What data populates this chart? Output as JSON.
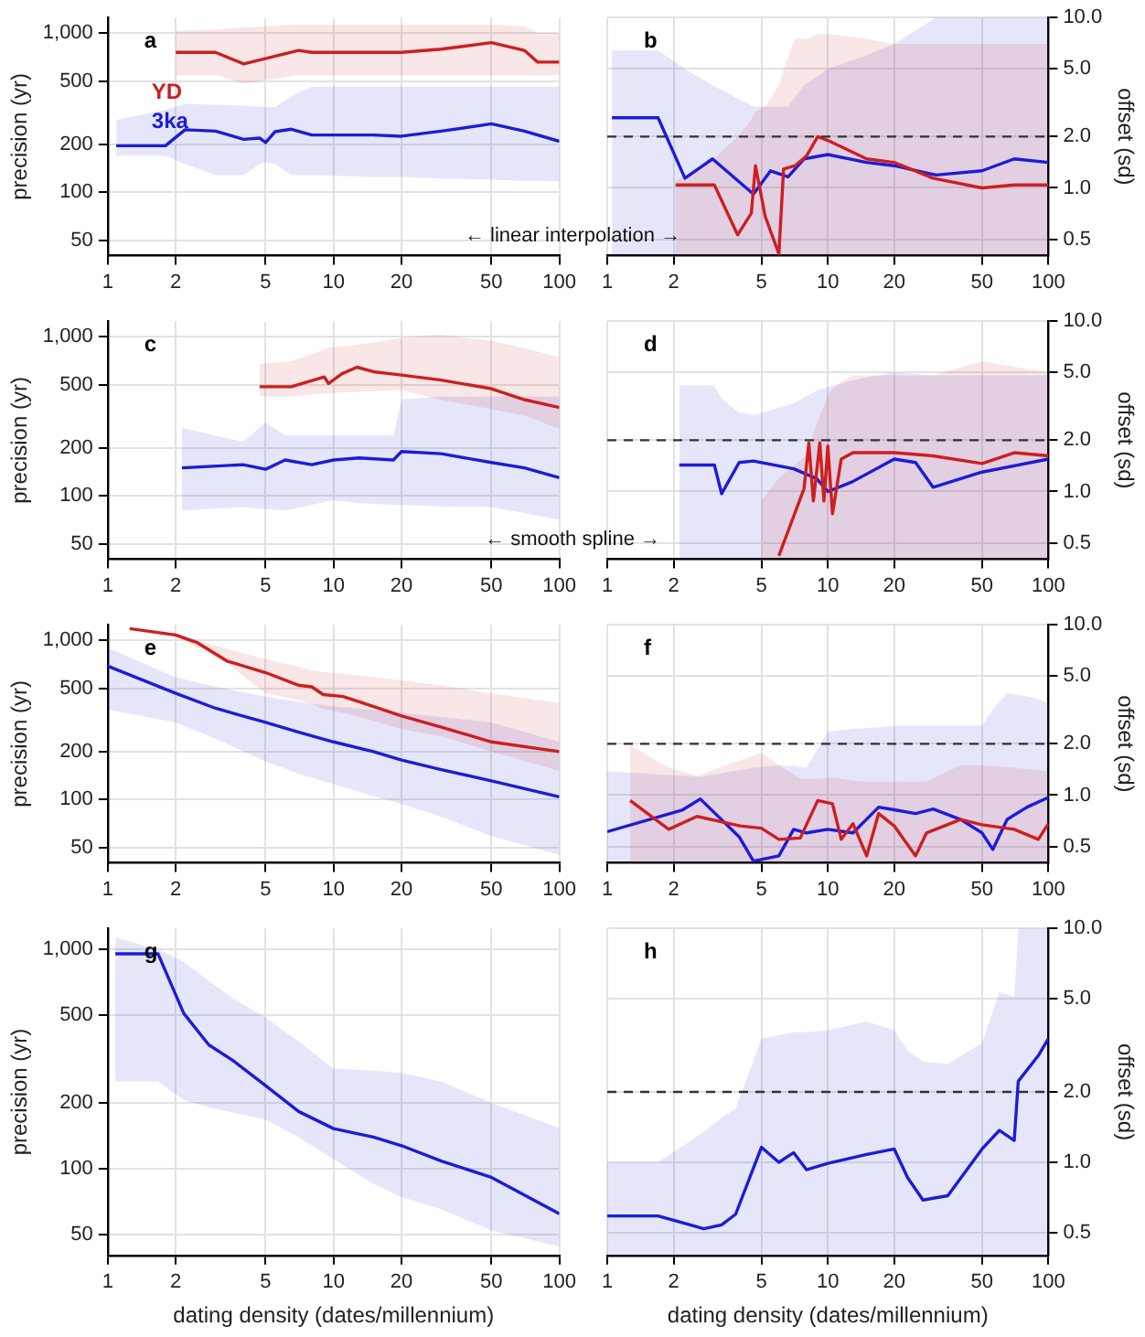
{
  "chart_data": [
    {
      "type": "line",
      "title": "a",
      "ylabel": "precision (yr)",
      "log": "xy",
      "grid": true,
      "xlim": [
        1,
        100
      ],
      "xticks": [
        1,
        2,
        5,
        10,
        20,
        50,
        100
      ],
      "ylim": [
        40,
        1250
      ],
      "yticks": [
        50,
        100,
        200,
        500,
        {
          "value": 1000,
          "label": "1,000"
        }
      ],
      "annotations": [
        "← linear interpolation →"
      ],
      "series": [
        {
          "name": "YD",
          "color": "#cc1f1f",
          "x": [
            2,
            3,
            4,
            7,
            8,
            20,
            30,
            50,
            70,
            80,
            100
          ],
          "values": [
            756,
            756,
            640,
            778,
            756,
            756,
            792,
            870,
            778,
            657,
            657
          ],
          "upper": [
            1030,
            1050,
            1080,
            1130,
            1130,
            1130,
            1130,
            1130,
            1100,
            1000,
            1000
          ],
          "lower": [
            545,
            545,
            480,
            545,
            545,
            545,
            545,
            545,
            545,
            545,
            545
          ]
        },
        {
          "name": "3ka",
          "color": "#1c1cd8",
          "x": [
            1.09,
            1.8,
            2.2,
            3,
            4,
            4.7,
            5,
            5.5,
            6.5,
            8,
            15,
            20,
            30,
            50,
            70,
            100
          ],
          "values": [
            196,
            196,
            247,
            242,
            215,
            219,
            205,
            240,
            249,
            229,
            229,
            225,
            242,
            269,
            242,
            209
          ],
          "upper": [
            284,
            330,
            359,
            355,
            350,
            345,
            343,
            343,
            400,
            461,
            461,
            461,
            461,
            461,
            461,
            461
          ],
          "lower": [
            170,
            170,
            150,
            128,
            128,
            150,
            155,
            150,
            128,
            128,
            125,
            125,
            122,
            120,
            118,
            117
          ]
        }
      ]
    },
    {
      "type": "line",
      "title": "b",
      "ylabel": "offset (sd)",
      "log": "xy",
      "grid": true,
      "xlim": [
        1,
        100
      ],
      "xticks": [
        1,
        2,
        5,
        10,
        20,
        50,
        100
      ],
      "ylim": [
        0.4,
        10
      ],
      "yticks": [
        {
          "value": 0.5,
          "label": "0.5"
        },
        {
          "value": 1,
          "label": "1.0"
        },
        {
          "value": 2,
          "label": "2.0"
        },
        {
          "value": 5,
          "label": "5.0"
        },
        {
          "value": 10,
          "label": "10.0"
        }
      ],
      "ref_lines": [
        {
          "axis": "y",
          "value": 2,
          "line_style": "dashed",
          "color": "#333333"
        }
      ],
      "series": [
        {
          "color": "#cc1f1f",
          "x": [
            2.04,
            3.06,
            3.9,
            4.5,
            4.7,
            5.2,
            6,
            6.3,
            7.1,
            8,
            9,
            10,
            15,
            20,
            30,
            50,
            70,
            100
          ],
          "values": [
            1.04,
            1.04,
            0.53,
            0.71,
            1.35,
            0.68,
            0.41,
            1.29,
            1.35,
            1.54,
            2.0,
            1.9,
            1.48,
            1.41,
            1.14,
            1.0,
            1.04,
            1.04
          ],
          "upper": [
            1.1,
            1.5,
            2,
            2.5,
            2.8,
            3,
            4,
            5,
            7.5,
            7.5,
            8,
            8,
            7.5,
            7,
            7,
            7,
            7,
            7
          ],
          "lower": [
            0.4,
            0.4,
            0.4,
            0.4,
            0.4,
            0.4,
            0.4,
            0.4,
            0.4,
            0.4,
            0.4,
            0.4,
            0.4,
            0.4,
            0.4,
            0.4,
            0.4,
            0.4
          ]
        },
        {
          "color": "#1c1cd8",
          "x": [
            1.05,
            1.7,
            2.25,
            3,
            4.6,
            5.5,
            6.6,
            7.8,
            10,
            15,
            20,
            31,
            50,
            70,
            100
          ],
          "values": [
            2.58,
            2.58,
            1.14,
            1.48,
            0.92,
            1.26,
            1.16,
            1.48,
            1.57,
            1.41,
            1.35,
            1.19,
            1.26,
            1.48,
            1.41
          ],
          "upper": [
            6.4,
            6.4,
            5,
            4,
            3,
            3,
            3,
            4,
            5,
            6,
            7,
            10,
            10,
            10,
            10
          ],
          "lower": [
            0.4,
            0.4,
            0.4,
            0.4,
            0.4,
            0.4,
            0.4,
            0.4,
            0.4,
            0.4,
            0.4,
            0.4,
            0.4,
            0.4,
            0.4
          ]
        }
      ]
    },
    {
      "type": "line",
      "title": "c",
      "ylabel": "precision (yr)",
      "log": "xy",
      "grid": true,
      "xlim": [
        1,
        100
      ],
      "xticks": [
        1,
        2,
        5,
        10,
        20,
        50,
        100
      ],
      "ylim": [
        40,
        1250
      ],
      "yticks": [
        50,
        100,
        200,
        500,
        {
          "value": 1000,
          "label": "1,000"
        }
      ],
      "annotations": [
        "← smooth spline →"
      ],
      "series": [
        {
          "color": "#cc1f1f",
          "x": [
            4.7,
            6.5,
            9.1,
            9.5,
            10.9,
            12.7,
            15,
            20,
            30,
            50,
            70,
            100
          ],
          "values": [
            485,
            485,
            558,
            508,
            585,
            643,
            602,
            574,
            533,
            471,
            402,
            359
          ],
          "upper": [
            674,
            700,
            830,
            852,
            870,
            890,
            920,
            980,
            1030,
            937,
            850,
            740
          ],
          "lower": [
            421,
            421,
            440,
            440,
            445,
            450,
            455,
            463,
            400,
            350,
            320,
            263
          ]
        },
        {
          "color": "#1c1cd8",
          "x": [
            2.13,
            3.97,
            5,
            6.1,
            8,
            10,
            13,
            18.4,
            20,
            30,
            50,
            70,
            100
          ],
          "values": [
            150,
            157,
            147,
            168,
            157,
            168,
            173,
            168,
            190,
            184,
            162,
            150,
            130
          ],
          "upper": [
            268,
            218,
            289,
            240,
            240,
            240,
            240,
            240,
            402,
            421,
            421,
            421,
            421
          ],
          "lower": [
            81,
            85,
            83,
            81,
            88,
            94,
            90,
            88,
            88,
            86,
            85,
            78,
            71
          ]
        }
      ]
    },
    {
      "type": "line",
      "title": "d",
      "ylabel": "offset (sd)",
      "log": "xy",
      "grid": true,
      "xlim": [
        1,
        100
      ],
      "xticks": [
        1,
        2,
        5,
        10,
        20,
        50,
        100
      ],
      "ylim": [
        0.4,
        10
      ],
      "yticks": [
        {
          "value": 0.5,
          "label": "0.5"
        },
        {
          "value": 1,
          "label": "1.0"
        },
        {
          "value": 2,
          "label": "2.0"
        },
        {
          "value": 5,
          "label": "5.0"
        },
        {
          "value": 10,
          "label": "10.0"
        }
      ],
      "ref_lines": [
        {
          "axis": "y",
          "value": 2,
          "line_style": "dashed",
          "color": "#333333"
        }
      ],
      "series": [
        {
          "color": "#cc1f1f",
          "x": [
            5,
            6,
            7.8,
            8.2,
            8.6,
            9.2,
            9.6,
            10,
            10.5,
            11.5,
            13,
            20,
            30,
            50,
            70,
            100
          ],
          "values": [
            null,
            0.42,
            1.04,
            1.93,
            0.88,
            1.93,
            0.88,
            1.85,
            0.74,
            1.55,
            1.69,
            1.69,
            1.62,
            1.46,
            1.69,
            1.62
          ],
          "upper": [
            0.88,
            1.2,
            1.6,
            1.8,
            2.2,
            2.8,
            3.2,
            3.7,
            4,
            4.4,
            4.8,
            4.8,
            4.8,
            5.8,
            5.4,
            5.0
          ],
          "lower": [
            0.4,
            0.4,
            0.4,
            0.4,
            0.4,
            0.4,
            0.4,
            0.4,
            0.4,
            0.4,
            0.4,
            0.4,
            0.4,
            0.4,
            0.4,
            0.4
          ]
        },
        {
          "color": "#1c1cd8",
          "x": [
            2.12,
            3.06,
            3.3,
            3.96,
            4.6,
            7,
            8.9,
            10,
            12.9,
            20,
            25,
            30,
            50,
            100
          ],
          "values": [
            1.43,
            1.43,
            0.97,
            1.48,
            1.51,
            1.36,
            1.19,
            1.0,
            1.14,
            1.55,
            1.48,
            1.06,
            1.3,
            1.55
          ],
          "upper": [
            4.2,
            4.2,
            3.5,
            2.9,
            2.8,
            3.3,
            3.9,
            4.1,
            4.5,
            5,
            4.9,
            4.8,
            4.8,
            4.8
          ],
          "lower": [
            0.4,
            0.4,
            0.4,
            0.4,
            0.4,
            0.4,
            0.4,
            0.4,
            0.4,
            0.4,
            0.4,
            0.4,
            0.4,
            0.4
          ]
        }
      ]
    },
    {
      "type": "line",
      "title": "e",
      "ylabel": "precision (yr)",
      "log": "xy",
      "grid": true,
      "xlim": [
        1,
        100
      ],
      "xticks": [
        1,
        2,
        5,
        10,
        20,
        50,
        100
      ],
      "ylim": [
        40,
        1250
      ],
      "yticks": [
        50,
        100,
        200,
        500,
        {
          "value": 1000,
          "label": "1,000"
        }
      ],
      "series": [
        {
          "color": "#cc1f1f",
          "x": [
            1.25,
            2,
            2.5,
            3.37,
            5,
            7.05,
            8,
            9,
            11,
            13,
            20,
            30,
            50,
            100
          ],
          "values": [
            1183,
            1078,
            963,
            741,
            626,
            520,
            510,
            456,
            443,
            411,
            335,
            285,
            230,
            200
          ],
          "upper": [
            1190,
            1100,
            1000,
            880,
            760,
            680,
            650,
            630,
            615,
            600,
            560,
            520,
            464,
            403
          ],
          "lower": [
            1175,
            1050,
            900,
            720,
            464,
            420,
            400,
            370,
            350,
            330,
            277,
            250,
            200,
            151
          ]
        },
        {
          "color": "#1c1cd8",
          "x": [
            1,
            2,
            3,
            5,
            7,
            10,
            15,
            20,
            30,
            50,
            100
          ],
          "values": [
            688,
            464,
            374,
            305,
            265,
            230,
            200,
            177,
            154,
            131,
            104
          ],
          "upper": [
            894,
            586,
            510,
            443,
            410,
            385,
            365,
            350,
            330,
            305,
            230
          ],
          "lower": [
            367,
            305,
            240,
            174,
            145,
            125,
            105,
            94,
            78,
            59,
            45
          ]
        }
      ]
    },
    {
      "type": "line",
      "title": "f",
      "ylabel": "offset (sd)",
      "log": "xy",
      "grid": true,
      "xlim": [
        1,
        100
      ],
      "xticks": [
        1,
        2,
        5,
        10,
        20,
        50,
        100
      ],
      "ylim": [
        0.4,
        10
      ],
      "yticks": [
        {
          "value": 0.5,
          "label": "0.5"
        },
        {
          "value": 1,
          "label": "1.0"
        },
        {
          "value": 2,
          "label": "2.0"
        },
        {
          "value": 5,
          "label": "5.0"
        },
        {
          "value": 10,
          "label": "10.0"
        }
      ],
      "ref_lines": [
        {
          "axis": "y",
          "value": 2,
          "line_style": "dashed",
          "color": "#333333"
        }
      ],
      "series": [
        {
          "color": "#cc1f1f",
          "x": [
            1.27,
            1.9,
            2.55,
            4,
            5,
            6,
            7.5,
            9,
            10.5,
            11.5,
            13,
            15,
            17,
            20,
            25,
            28,
            40,
            50,
            70,
            90,
            100
          ],
          "values": [
            0.93,
            0.63,
            0.75,
            0.66,
            0.64,
            0.55,
            0.56,
            0.93,
            0.89,
            0.55,
            0.68,
            0.44,
            0.78,
            0.66,
            0.44,
            0.6,
            0.72,
            0.67,
            0.63,
            0.55,
            0.68
          ],
          "upper": [
            1.96,
            1.45,
            1.3,
            1.6,
            1.77,
            1.5,
            1.25,
            1.25,
            1.27,
            1.25,
            1.22,
            1.2,
            1.2,
            1.2,
            1.2,
            1.2,
            1.5,
            1.5,
            1.45,
            1.4,
            1.38
          ],
          "lower": [
            0.4,
            0.4,
            0.4,
            0.4,
            0.4,
            0.4,
            0.4,
            0.4,
            0.4,
            0.4,
            0.4,
            0.4,
            0.4,
            0.4,
            0.4,
            0.4,
            0.4,
            0.4,
            0.4,
            0.4,
            0.4
          ]
        },
        {
          "color": "#1c1cd8",
          "x": [
            1,
            2.2,
            2.64,
            3.96,
            4.6,
            6,
            7,
            8,
            10,
            13,
            17,
            20,
            25,
            30,
            40,
            50,
            56,
            65,
            80,
            100
          ],
          "values": [
            0.61,
            0.82,
            0.95,
            0.57,
            0.41,
            0.44,
            0.63,
            0.6,
            0.63,
            0.6,
            0.85,
            0.82,
            0.78,
            0.83,
            0.72,
            0.6,
            0.48,
            0.72,
            0.85,
            0.97
          ],
          "upper": [
            1.38,
            1.3,
            1.28,
            1.4,
            1.45,
            1.5,
            1.48,
            1.45,
            2.35,
            2.45,
            2.5,
            2.56,
            2.56,
            2.56,
            2.56,
            2.56,
            3.2,
            3.97,
            3.8,
            3.5
          ],
          "lower": [
            0.4,
            0.4,
            0.4,
            0.4,
            0.4,
            0.4,
            0.4,
            0.4,
            0.4,
            0.4,
            0.4,
            0.4,
            0.4,
            0.4,
            0.4,
            0.4,
            0.4,
            0.4,
            0.4,
            0.4
          ]
        }
      ]
    },
    {
      "type": "line",
      "title": "g",
      "ylabel": "precision (yr)",
      "xlabel": "dating density (dates/millennium)",
      "log": "xy",
      "grid": true,
      "xlim": [
        1,
        100
      ],
      "xticks": [
        1,
        2,
        5,
        10,
        20,
        50,
        100
      ],
      "ylim": [
        40,
        1250
      ],
      "yticks": [
        50,
        100,
        200,
        500,
        {
          "value": 1000,
          "label": "1,000"
        }
      ],
      "series": [
        {
          "color": "#1c1cd8",
          "x": [
            1.08,
            1.67,
            2.17,
            2.8,
            3.57,
            5,
            7,
            10,
            15,
            20,
            30,
            50,
            100
          ],
          "values": [
            956,
            956,
            511,
            367,
            312,
            239,
            182,
            152,
            139,
            127,
            108,
            91,
            62
          ],
          "upper": [
            1140,
            1000,
            880,
            720,
            600,
            489,
            380,
            286,
            280,
            273,
            249,
            199,
            153
          ],
          "lower": [
            250,
            250,
            205,
            190,
            180,
            167,
            139,
            110,
            85,
            74,
            65,
            52,
            44
          ]
        }
      ]
    },
    {
      "type": "line",
      "title": "h",
      "ylabel": "offset (sd)",
      "xlabel": "dating density (dates/millennium)",
      "log": "xy",
      "grid": true,
      "xlim": [
        1,
        100
      ],
      "xticks": [
        1,
        2,
        5,
        10,
        20,
        50,
        100
      ],
      "ylim": [
        0.4,
        10
      ],
      "yticks": [
        {
          "value": 0.5,
          "label": "0.5"
        },
        {
          "value": 1,
          "label": "1.0"
        },
        {
          "value": 2,
          "label": "2.0"
        },
        {
          "value": 5,
          "label": "5.0"
        },
        {
          "value": 10,
          "label": "10.0"
        }
      ],
      "ref_lines": [
        {
          "axis": "y",
          "value": 2,
          "line_style": "dashed",
          "color": "#333333"
        }
      ],
      "series": [
        {
          "color": "#1c1cd8",
          "x": [
            1,
            1.7,
            2.74,
            3.3,
            3.82,
            5,
            6,
            7,
            8,
            10,
            15,
            20,
            23,
            27,
            35,
            50,
            60,
            70,
            73,
            90,
            100
          ],
          "values": [
            0.59,
            0.59,
            0.52,
            0.54,
            0.6,
            1.16,
            1.0,
            1.1,
            0.93,
            0.99,
            1.08,
            1.14,
            0.86,
            0.69,
            0.72,
            1.14,
            1.37,
            1.24,
            2.22,
            2.86,
            3.38
          ],
          "upper": [
            1.0,
            1.0,
            1.35,
            1.55,
            1.7,
            3.38,
            3.5,
            3.6,
            3.6,
            3.67,
            4.0,
            3.67,
            3.0,
            2.7,
            2.63,
            3.24,
            5.35,
            5.1,
            10,
            10,
            10
          ],
          "lower": [
            0.4,
            0.4,
            0.4,
            0.4,
            0.4,
            0.4,
            0.4,
            0.4,
            0.4,
            0.4,
            0.4,
            0.4,
            0.4,
            0.4,
            0.4,
            0.4,
            0.4,
            0.4,
            0.4,
            0.4,
            0.4
          ]
        }
      ]
    }
  ]
}
